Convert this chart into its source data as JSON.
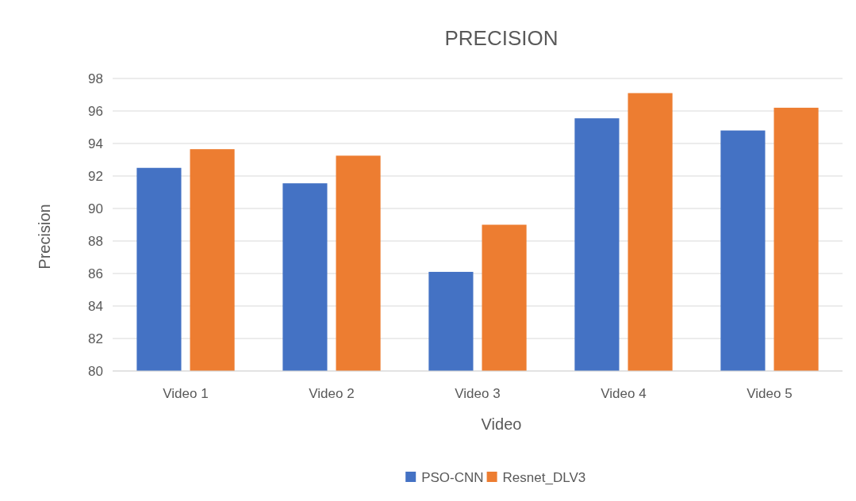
{
  "chart_data": {
    "type": "bar",
    "title": "PRECISION",
    "xlabel": "Video",
    "ylabel": "Precision",
    "categories": [
      "Video 1",
      "Video 2",
      "Video 3",
      "Video 4",
      "Video 5"
    ],
    "series": [
      {
        "name": "PSO-CNN",
        "color": "#4472c4",
        "values": [
          92.5,
          91.55,
          86.1,
          95.55,
          94.8
        ]
      },
      {
        "name": "Resnet_DLV3",
        "color": "#ed7d31",
        "values": [
          93.65,
          93.25,
          89.0,
          97.1,
          96.2
        ]
      }
    ],
    "ylim": [
      80,
      98
    ],
    "yticks": [
      80,
      82,
      84,
      86,
      88,
      90,
      92,
      94,
      96,
      98
    ],
    "grid": "y",
    "legend": "bottom"
  }
}
